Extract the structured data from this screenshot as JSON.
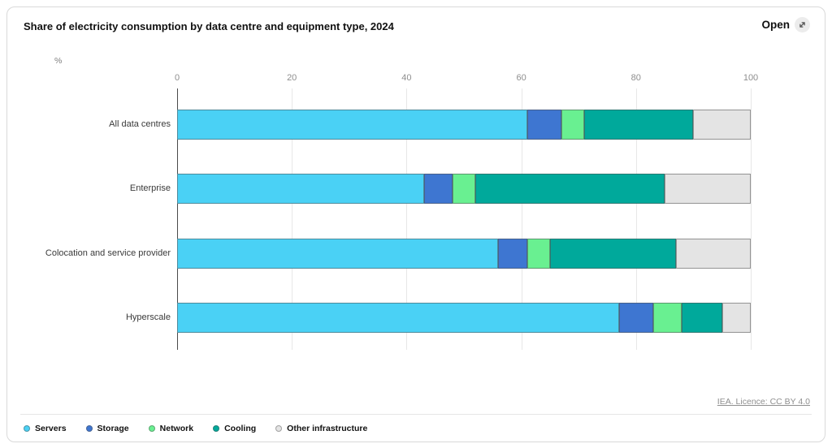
{
  "card": {
    "title": "Share of electricity consumption by data centre and equipment type, 2024",
    "open_label": "Open",
    "license_link": "IEA. Licence: CC BY 4.0"
  },
  "chart_data": {
    "type": "bar",
    "orientation": "horizontal",
    "stacked": true,
    "title": "Share of electricity consumption by data centre and equipment type, 2024",
    "unit_label": "%",
    "x_axis": {
      "min": 0,
      "max": 100,
      "ticks": [
        0,
        20,
        40,
        60,
        80,
        100
      ],
      "position": "top"
    },
    "grid": true,
    "legend_position": "bottom",
    "categories": [
      "All data centres",
      "Enterprise",
      "Colocation and service provider",
      "Hyperscale"
    ],
    "series": [
      {
        "name": "Servers",
        "color": "#4AD1F5",
        "values": [
          61,
          43,
          56,
          77
        ]
      },
      {
        "name": "Storage",
        "color": "#3E76D1",
        "values": [
          6,
          5,
          5,
          6
        ]
      },
      {
        "name": "Network",
        "color": "#69F091",
        "values": [
          4,
          4,
          4,
          5
        ]
      },
      {
        "name": "Cooling",
        "color": "#00A99B",
        "values": [
          19,
          33,
          22,
          7
        ]
      },
      {
        "name": "Other infrastructure",
        "color": "#E4E4E4",
        "values": [
          10,
          15,
          13,
          5
        ]
      }
    ]
  }
}
